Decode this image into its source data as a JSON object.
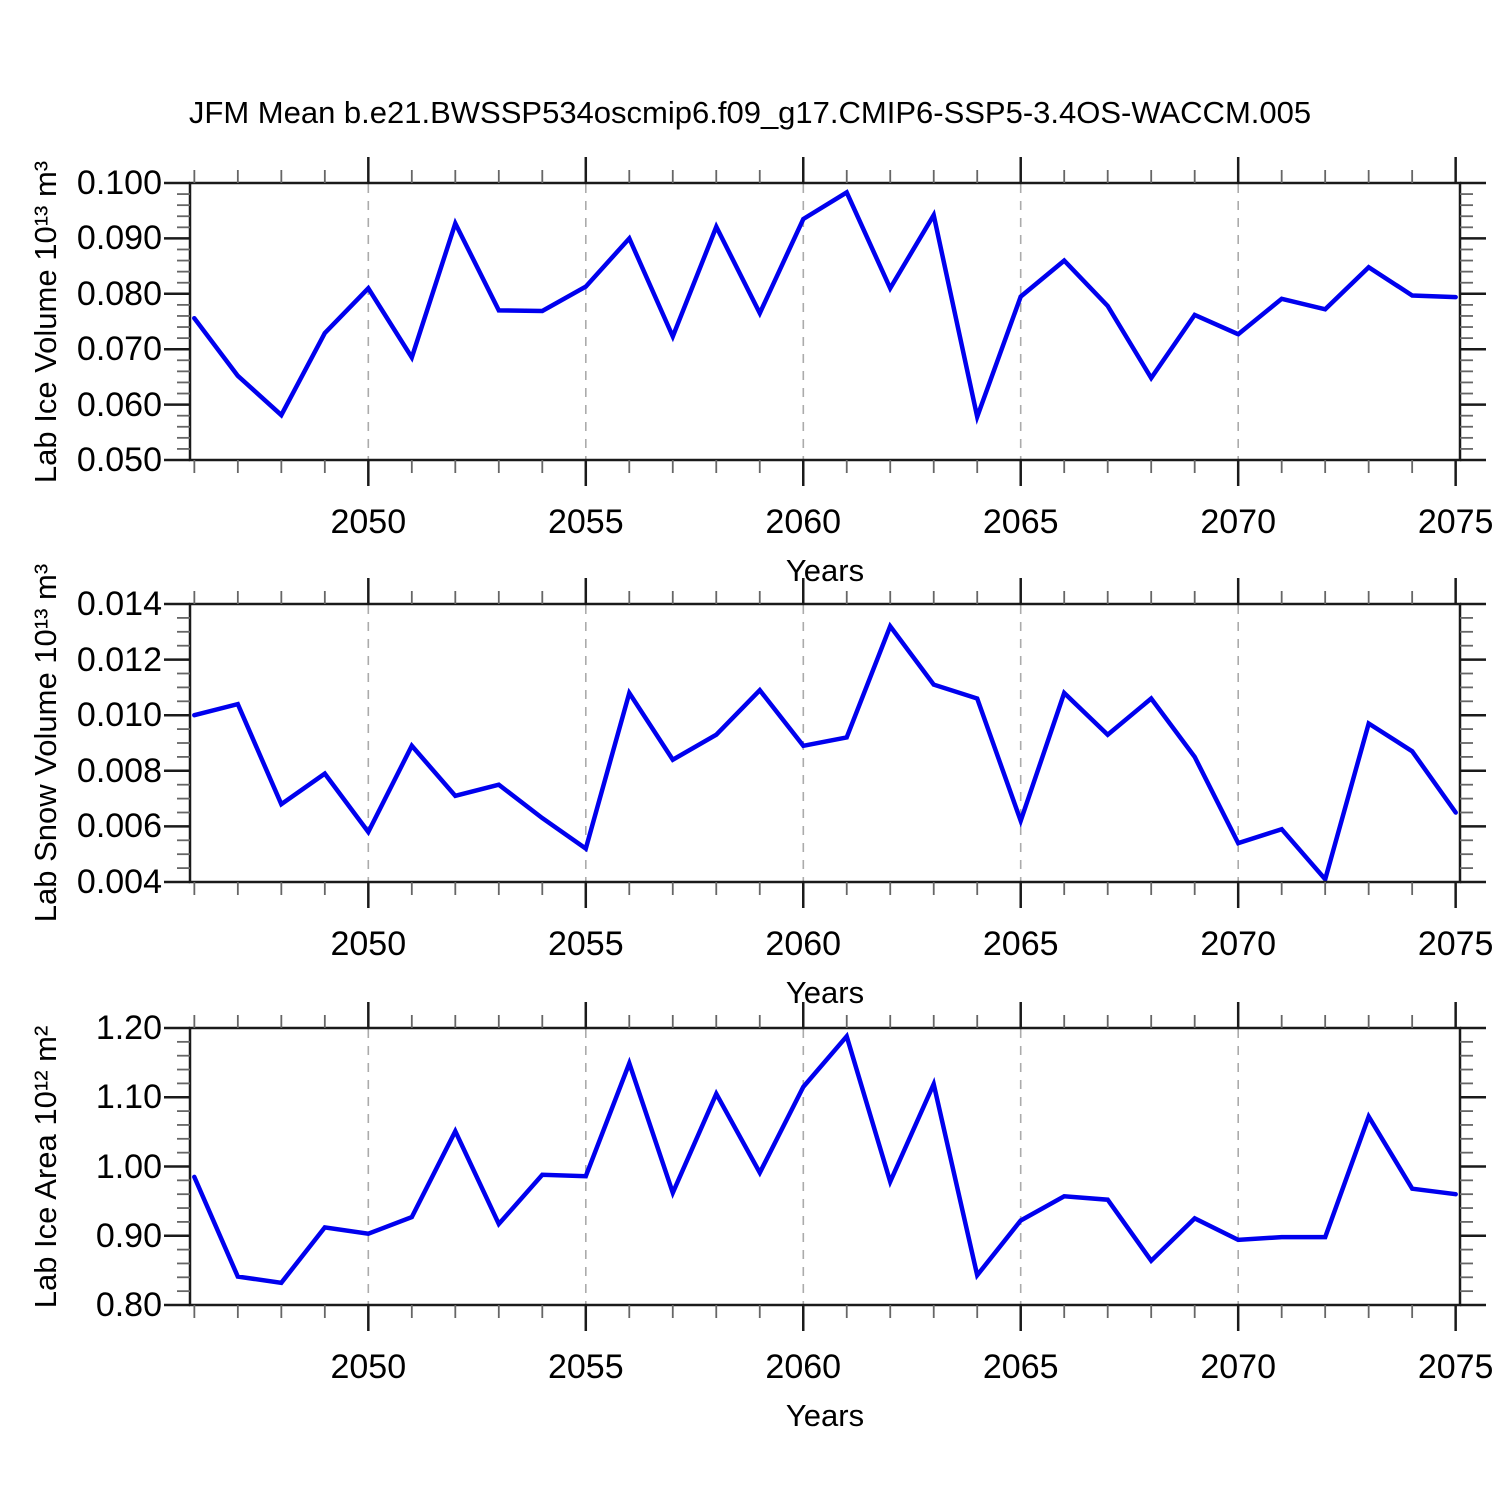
{
  "title": "JFM Mean b.e21.BWSSP534oscmip6.f09_g17.CMIP6-SSP5-3.4OS-WACCM.005",
  "colors": {
    "line": "#0000EE",
    "grid": "#ABABAB",
    "frame": "#1A1A1A",
    "minor_tick": "#666666",
    "text": "#000000"
  },
  "x_axis": {
    "label": "Years",
    "range": [
      2045.9,
      2075.1
    ],
    "major_ticks": [
      2050,
      2055,
      2060,
      2065,
      2070,
      2075
    ],
    "major_tick_labels": [
      "2050",
      "2055",
      "2060",
      "2065",
      "2070",
      "2075"
    ],
    "gridline_ticks": [
      2050,
      2055,
      2060,
      2065,
      2070
    ],
    "minor_step": 1
  },
  "chart_data": [
    {
      "type": "line",
      "title": "",
      "ylabel": "Lab Ice Volume 10¹³ m³",
      "xlabel": "Years",
      "legend": null,
      "grid": "vertical-dashed",
      "xlim": [
        2045.9,
        2075.1
      ],
      "ylim": [
        0.05,
        0.1
      ],
      "ytick_values": [
        0.1,
        0.09,
        0.08,
        0.07,
        0.06,
        0.05
      ],
      "ytick_labels": [
        "0.100",
        "0.090",
        "0.080",
        "0.070",
        "0.060",
        "0.050"
      ],
      "yminor_step": 0.002,
      "x": [
        2046,
        2047,
        2048,
        2049,
        2050,
        2051,
        2052,
        2053,
        2054,
        2055,
        2056,
        2057,
        2058,
        2059,
        2060,
        2061,
        2062,
        2063,
        2064,
        2065,
        2066,
        2067,
        2068,
        2069,
        2070,
        2071,
        2072,
        2073,
        2074,
        2075
      ],
      "values": [
        0.0756,
        0.0652,
        0.0581,
        0.0729,
        0.081,
        0.0685,
        0.0927,
        0.077,
        0.0769,
        0.0813,
        0.09,
        0.0723,
        0.0921,
        0.0765,
        0.0935,
        0.0983,
        0.081,
        0.0942,
        0.0578,
        0.0795,
        0.086,
        0.0778,
        0.0648,
        0.0762,
        0.0727,
        0.0791,
        0.0772,
        0.0848,
        0.0797,
        0.0794
      ]
    },
    {
      "type": "line",
      "title": "",
      "ylabel": "Lab Snow Volume 10¹³ m³",
      "xlabel": "Years",
      "legend": null,
      "grid": "vertical-dashed",
      "xlim": [
        2045.9,
        2075.1
      ],
      "ylim": [
        0.004,
        0.014
      ],
      "ytick_values": [
        0.014,
        0.012,
        0.01,
        0.008,
        0.006,
        0.004
      ],
      "ytick_labels": [
        "0.014",
        "0.012",
        "0.010",
        "0.008",
        "0.006",
        "0.004"
      ],
      "yminor_step": 0.0005,
      "x": [
        2046,
        2047,
        2048,
        2049,
        2050,
        2051,
        2052,
        2053,
        2054,
        2055,
        2056,
        2057,
        2058,
        2059,
        2060,
        2061,
        2062,
        2063,
        2064,
        2065,
        2066,
        2067,
        2068,
        2069,
        2070,
        2071,
        2072,
        2073,
        2074,
        2075
      ],
      "values": [
        0.01,
        0.0104,
        0.0068,
        0.0079,
        0.0058,
        0.0089,
        0.0071,
        0.0075,
        0.0063,
        0.0052,
        0.0108,
        0.0084,
        0.0093,
        0.0109,
        0.0089,
        0.0092,
        0.0132,
        0.0111,
        0.0106,
        0.0062,
        0.0108,
        0.0093,
        0.0106,
        0.0085,
        0.0054,
        0.0059,
        0.0041,
        0.0097,
        0.0087,
        0.0065
      ]
    },
    {
      "type": "line",
      "title": "",
      "ylabel": "Lab Ice Area 10¹² m²",
      "xlabel": "Years",
      "legend": null,
      "grid": "vertical-dashed",
      "xlim": [
        2045.9,
        2075.1
      ],
      "ylim": [
        0.8,
        1.2
      ],
      "ytick_values": [
        1.2,
        1.1,
        1.0,
        0.9,
        0.8
      ],
      "ytick_labels": [
        "1.20",
        "1.10",
        "1.00",
        "0.90",
        "0.80"
      ],
      "yminor_step": 0.02,
      "x": [
        2046,
        2047,
        2048,
        2049,
        2050,
        2051,
        2052,
        2053,
        2054,
        2055,
        2056,
        2057,
        2058,
        2059,
        2060,
        2061,
        2062,
        2063,
        2064,
        2065,
        2066,
        2067,
        2068,
        2069,
        2070,
        2071,
        2072,
        2073,
        2074,
        2075
      ],
      "values": [
        0.985,
        0.841,
        0.832,
        0.912,
        0.903,
        0.927,
        1.051,
        0.917,
        0.988,
        0.986,
        1.149,
        0.962,
        1.105,
        0.991,
        1.115,
        1.188,
        0.978,
        1.119,
        0.843,
        0.922,
        0.957,
        0.952,
        0.864,
        0.925,
        0.894,
        0.898,
        0.898,
        1.072,
        0.968,
        0.96
      ]
    }
  ]
}
